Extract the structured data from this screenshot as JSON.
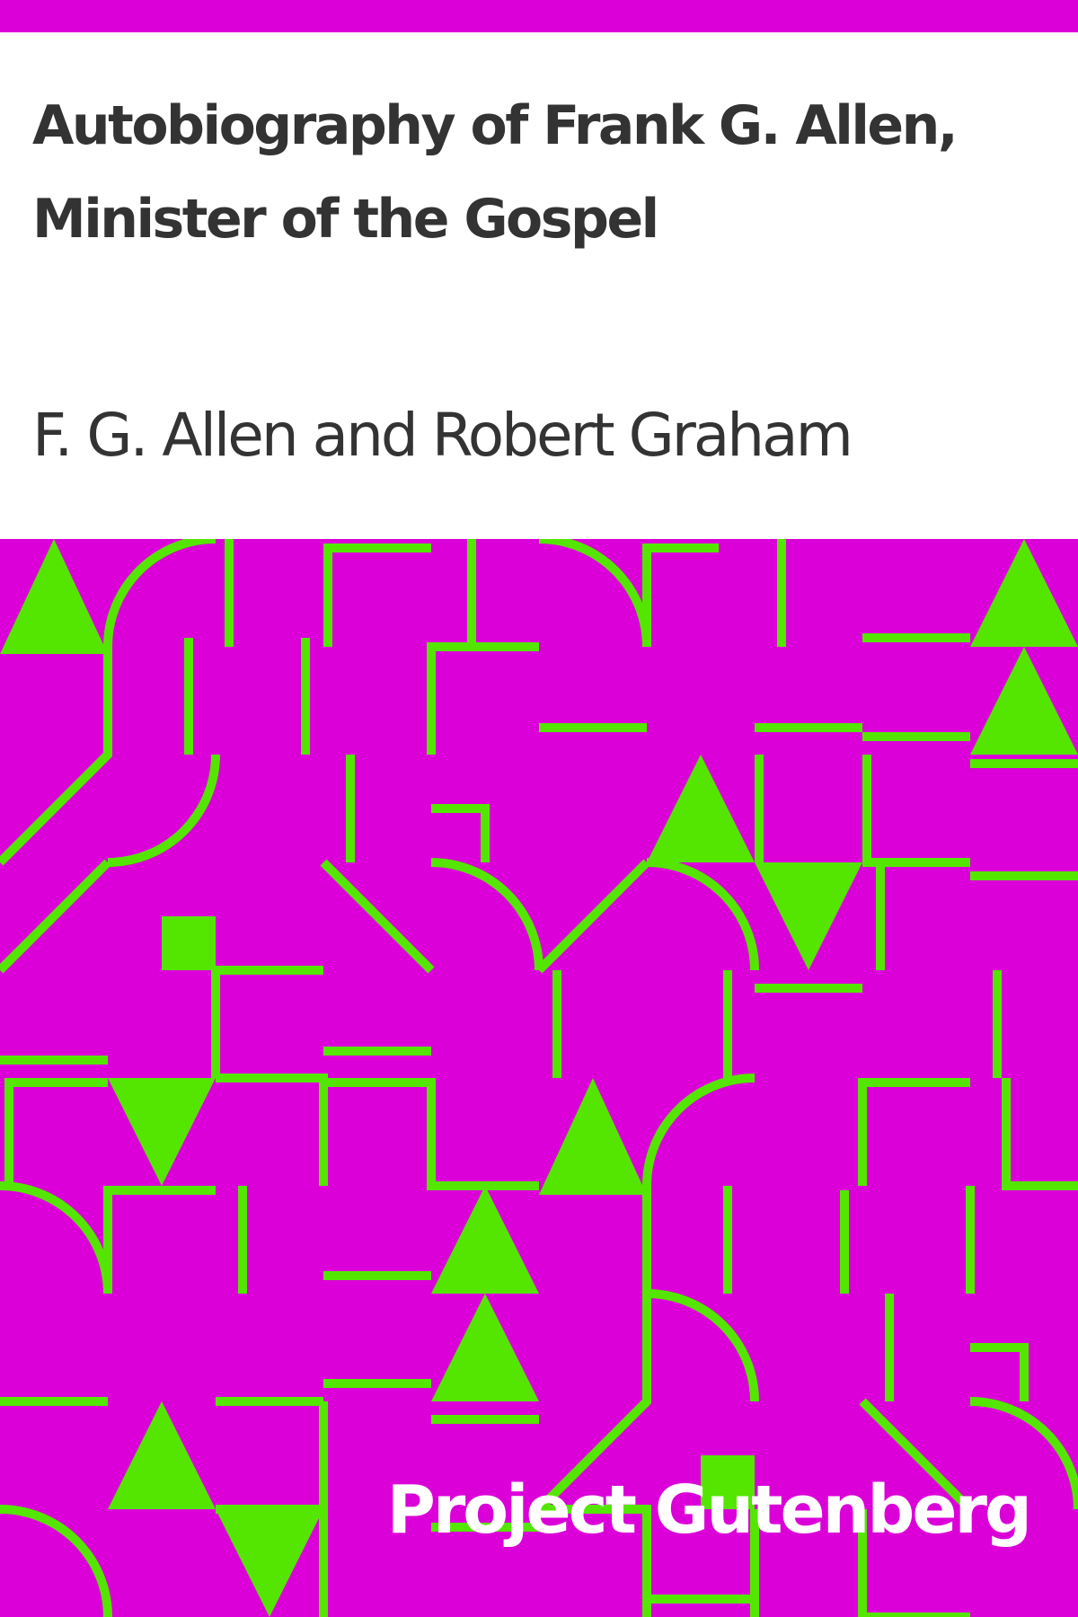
{
  "book": {
    "title": "Autobiography of Frank G. Allen, Minister of the Gospel",
    "author": "F. G. Allen and Robert Graham",
    "publisher": "Project Gutenberg"
  },
  "colors": {
    "background": "#DB00D8",
    "pattern": "#54E600",
    "text": "#333333",
    "paper": "#FFFFFF"
  }
}
